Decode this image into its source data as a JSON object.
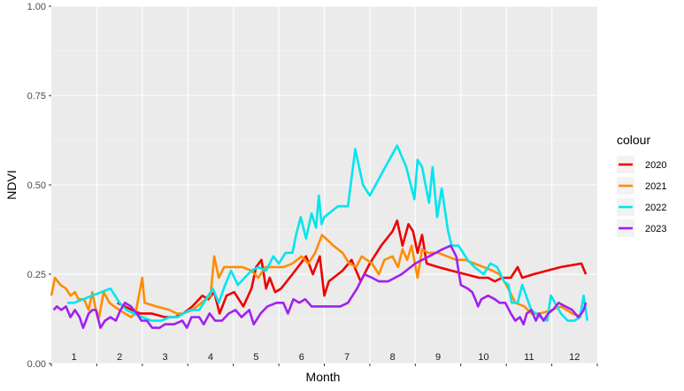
{
  "chart_data": {
    "type": "line",
    "xlabel": "Month",
    "ylabel": "NDVI",
    "ylim": [
      0,
      1
    ],
    "xlim": [
      0,
      12
    ],
    "y_ticks": [
      "0.00",
      "0.25",
      "0.50",
      "0.75",
      "1.00"
    ],
    "x_categories": [
      "1",
      "2",
      "3",
      "4",
      "5",
      "6",
      "7",
      "8",
      "9",
      "10",
      "11",
      "12"
    ],
    "grid": true,
    "legend": {
      "title": "colour",
      "position": "right"
    },
    "series": [
      {
        "name": "2020",
        "color": "#ee0000",
        "points": [
          [
            1.45,
            0.17
          ],
          [
            1.62,
            0.16
          ],
          [
            1.78,
            0.15
          ],
          [
            1.95,
            0.14
          ],
          [
            2.2,
            0.14
          ],
          [
            2.5,
            0.13
          ],
          [
            2.72,
            0.13
          ],
          [
            2.9,
            0.14
          ],
          [
            3.1,
            0.16
          ],
          [
            3.32,
            0.19
          ],
          [
            3.45,
            0.18
          ],
          [
            3.58,
            0.2
          ],
          [
            3.7,
            0.14
          ],
          [
            3.85,
            0.19
          ],
          [
            4.02,
            0.2
          ],
          [
            4.22,
            0.16
          ],
          [
            4.4,
            0.21
          ],
          [
            4.5,
            0.27
          ],
          [
            4.62,
            0.29
          ],
          [
            4.72,
            0.21
          ],
          [
            4.8,
            0.24
          ],
          [
            4.92,
            0.2
          ],
          [
            5.05,
            0.21
          ],
          [
            5.3,
            0.25
          ],
          [
            5.6,
            0.3
          ],
          [
            5.75,
            0.25
          ],
          [
            5.9,
            0.3
          ],
          [
            6.0,
            0.19
          ],
          [
            6.1,
            0.23
          ],
          [
            6.4,
            0.26
          ],
          [
            6.6,
            0.29
          ],
          [
            6.8,
            0.23
          ],
          [
            7.0,
            0.28
          ],
          [
            7.25,
            0.33
          ],
          [
            7.5,
            0.37
          ],
          [
            7.6,
            0.4
          ],
          [
            7.72,
            0.33
          ],
          [
            7.85,
            0.39
          ],
          [
            7.95,
            0.37
          ],
          [
            8.05,
            0.31
          ],
          [
            8.15,
            0.36
          ],
          [
            8.25,
            0.28
          ],
          [
            8.5,
            0.27
          ],
          [
            8.8,
            0.26
          ],
          [
            9.1,
            0.25
          ],
          [
            9.4,
            0.24
          ],
          [
            9.6,
            0.24
          ],
          [
            9.75,
            0.23
          ],
          [
            9.9,
            0.24
          ],
          [
            10.1,
            0.24
          ],
          [
            10.25,
            0.27
          ],
          [
            10.35,
            0.24
          ],
          [
            10.6,
            0.25
          ],
          [
            11.2,
            0.27
          ],
          [
            11.65,
            0.28
          ],
          [
            11.75,
            0.25
          ]
        ]
      },
      {
        "name": "2021",
        "color": "#ff8c00",
        "points": [
          [
            0.0,
            0.19
          ],
          [
            0.08,
            0.24
          ],
          [
            0.2,
            0.22
          ],
          [
            0.32,
            0.21
          ],
          [
            0.42,
            0.19
          ],
          [
            0.52,
            0.2
          ],
          [
            0.6,
            0.18
          ],
          [
            0.72,
            0.18
          ],
          [
            0.82,
            0.15
          ],
          [
            0.9,
            0.2
          ],
          [
            0.98,
            0.15
          ],
          [
            1.05,
            0.13
          ],
          [
            1.15,
            0.2
          ],
          [
            1.28,
            0.17
          ],
          [
            1.38,
            0.16
          ],
          [
            1.5,
            0.15
          ],
          [
            1.62,
            0.14
          ],
          [
            1.75,
            0.13
          ],
          [
            1.85,
            0.14
          ],
          [
            2.0,
            0.24
          ],
          [
            2.05,
            0.17
          ],
          [
            2.3,
            0.16
          ],
          [
            2.6,
            0.15
          ],
          [
            2.75,
            0.14
          ],
          [
            2.9,
            0.14
          ],
          [
            3.1,
            0.15
          ],
          [
            3.3,
            0.17
          ],
          [
            3.5,
            0.19
          ],
          [
            3.58,
            0.3
          ],
          [
            3.68,
            0.24
          ],
          [
            3.8,
            0.27
          ],
          [
            4.0,
            0.27
          ],
          [
            4.2,
            0.27
          ],
          [
            4.4,
            0.26
          ],
          [
            4.55,
            0.24
          ],
          [
            4.7,
            0.27
          ],
          [
            4.9,
            0.27
          ],
          [
            5.1,
            0.27
          ],
          [
            5.3,
            0.28
          ],
          [
            5.5,
            0.3
          ],
          [
            5.65,
            0.28
          ],
          [
            5.8,
            0.31
          ],
          [
            5.95,
            0.36
          ],
          [
            6.2,
            0.33
          ],
          [
            6.4,
            0.31
          ],
          [
            6.55,
            0.28
          ],
          [
            6.7,
            0.27
          ],
          [
            6.82,
            0.3
          ],
          [
            7.05,
            0.28
          ],
          [
            7.2,
            0.25
          ],
          [
            7.32,
            0.29
          ],
          [
            7.5,
            0.3
          ],
          [
            7.62,
            0.27
          ],
          [
            7.72,
            0.32
          ],
          [
            7.82,
            0.29
          ],
          [
            7.92,
            0.33
          ],
          [
            8.05,
            0.24
          ],
          [
            8.15,
            0.32
          ],
          [
            8.28,
            0.31
          ],
          [
            8.5,
            0.31
          ],
          [
            8.7,
            0.3
          ],
          [
            8.9,
            0.29
          ],
          [
            9.1,
            0.29
          ],
          [
            9.3,
            0.28
          ],
          [
            9.5,
            0.27
          ],
          [
            9.7,
            0.26
          ],
          [
            9.85,
            0.25
          ],
          [
            10.0,
            0.22
          ],
          [
            10.2,
            0.17
          ],
          [
            10.4,
            0.16
          ],
          [
            10.55,
            0.14
          ],
          [
            10.75,
            0.14
          ],
          [
            11.0,
            0.15
          ],
          [
            11.2,
            0.16
          ],
          [
            11.45,
            0.14
          ],
          [
            11.65,
            0.13
          ]
        ]
      },
      {
        "name": "2022",
        "color": "#00e5ee",
        "points": [
          [
            0.35,
            0.17
          ],
          [
            0.5,
            0.17
          ],
          [
            0.7,
            0.18
          ],
          [
            0.9,
            0.19
          ],
          [
            1.1,
            0.2
          ],
          [
            1.3,
            0.21
          ],
          [
            1.4,
            0.19
          ],
          [
            1.5,
            0.17
          ],
          [
            1.65,
            0.15
          ],
          [
            1.82,
            0.14
          ],
          [
            2.0,
            0.13
          ],
          [
            2.2,
            0.12
          ],
          [
            2.42,
            0.12
          ],
          [
            2.6,
            0.13
          ],
          [
            2.78,
            0.13
          ],
          [
            2.9,
            0.14
          ],
          [
            3.05,
            0.15
          ],
          [
            3.25,
            0.15
          ],
          [
            3.4,
            0.18
          ],
          [
            3.55,
            0.21
          ],
          [
            3.68,
            0.17
          ],
          [
            3.82,
            0.22
          ],
          [
            3.95,
            0.26
          ],
          [
            4.1,
            0.22
          ],
          [
            4.25,
            0.24
          ],
          [
            4.4,
            0.26
          ],
          [
            4.55,
            0.27
          ],
          [
            4.72,
            0.26
          ],
          [
            4.88,
            0.3
          ],
          [
            5.0,
            0.28
          ],
          [
            5.15,
            0.31
          ],
          [
            5.3,
            0.31
          ],
          [
            5.38,
            0.36
          ],
          [
            5.48,
            0.41
          ],
          [
            5.6,
            0.35
          ],
          [
            5.72,
            0.42
          ],
          [
            5.82,
            0.38
          ],
          [
            5.88,
            0.47
          ],
          [
            5.94,
            0.39
          ],
          [
            6.0,
            0.41
          ],
          [
            6.3,
            0.44
          ],
          [
            6.52,
            0.44
          ],
          [
            6.68,
            0.6
          ],
          [
            6.85,
            0.5
          ],
          [
            7.0,
            0.47
          ],
          [
            7.3,
            0.54
          ],
          [
            7.6,
            0.61
          ],
          [
            7.8,
            0.55
          ],
          [
            7.98,
            0.46
          ],
          [
            8.05,
            0.57
          ],
          [
            8.15,
            0.55
          ],
          [
            8.3,
            0.45
          ],
          [
            8.38,
            0.55
          ],
          [
            8.48,
            0.41
          ],
          [
            8.58,
            0.49
          ],
          [
            8.72,
            0.37
          ],
          [
            8.8,
            0.33
          ],
          [
            8.95,
            0.33
          ],
          [
            9.15,
            0.29
          ],
          [
            9.3,
            0.27
          ],
          [
            9.5,
            0.25
          ],
          [
            9.65,
            0.28
          ],
          [
            9.8,
            0.27
          ],
          [
            9.95,
            0.23
          ],
          [
            10.05,
            0.22
          ],
          [
            10.12,
            0.17
          ],
          [
            10.25,
            0.17
          ],
          [
            10.35,
            0.22
          ],
          [
            10.55,
            0.15
          ],
          [
            10.75,
            0.13
          ],
          [
            10.9,
            0.12
          ],
          [
            10.98,
            0.19
          ],
          [
            11.2,
            0.14
          ],
          [
            11.35,
            0.12
          ],
          [
            11.5,
            0.12
          ],
          [
            11.62,
            0.13
          ],
          [
            11.7,
            0.19
          ],
          [
            11.78,
            0.12
          ]
        ]
      },
      {
        "name": "2023",
        "color": "#a020f0",
        "points": [
          [
            0.05,
            0.15
          ],
          [
            0.12,
            0.16
          ],
          [
            0.22,
            0.15
          ],
          [
            0.32,
            0.16
          ],
          [
            0.42,
            0.13
          ],
          [
            0.52,
            0.15
          ],
          [
            0.62,
            0.13
          ],
          [
            0.7,
            0.1
          ],
          [
            0.82,
            0.14
          ],
          [
            0.9,
            0.15
          ],
          [
            0.98,
            0.15
          ],
          [
            1.08,
            0.1
          ],
          [
            1.18,
            0.12
          ],
          [
            1.3,
            0.13
          ],
          [
            1.42,
            0.12
          ],
          [
            1.52,
            0.15
          ],
          [
            1.62,
            0.17
          ],
          [
            1.75,
            0.16
          ],
          [
            1.88,
            0.14
          ],
          [
            1.98,
            0.12
          ],
          [
            2.1,
            0.12
          ],
          [
            2.22,
            0.1
          ],
          [
            2.38,
            0.1
          ],
          [
            2.5,
            0.11
          ],
          [
            2.7,
            0.11
          ],
          [
            2.88,
            0.12
          ],
          [
            2.98,
            0.1
          ],
          [
            3.08,
            0.13
          ],
          [
            3.25,
            0.13
          ],
          [
            3.35,
            0.11
          ],
          [
            3.48,
            0.14
          ],
          [
            3.6,
            0.12
          ],
          [
            3.75,
            0.12
          ],
          [
            3.9,
            0.14
          ],
          [
            4.05,
            0.15
          ],
          [
            4.18,
            0.13
          ],
          [
            4.35,
            0.15
          ],
          [
            4.45,
            0.11
          ],
          [
            4.6,
            0.14
          ],
          [
            4.75,
            0.16
          ],
          [
            4.95,
            0.17
          ],
          [
            5.1,
            0.17
          ],
          [
            5.2,
            0.14
          ],
          [
            5.32,
            0.18
          ],
          [
            5.45,
            0.17
          ],
          [
            5.58,
            0.18
          ],
          [
            5.72,
            0.16
          ],
          [
            5.85,
            0.16
          ],
          [
            6.1,
            0.16
          ],
          [
            6.35,
            0.16
          ],
          [
            6.52,
            0.17
          ],
          [
            6.72,
            0.21
          ],
          [
            6.88,
            0.25
          ],
          [
            7.05,
            0.24
          ],
          [
            7.2,
            0.23
          ],
          [
            7.4,
            0.23
          ],
          [
            7.7,
            0.25
          ],
          [
            8.0,
            0.28
          ],
          [
            8.3,
            0.3
          ],
          [
            8.6,
            0.32
          ],
          [
            8.78,
            0.33
          ],
          [
            8.9,
            0.3
          ],
          [
            9.0,
            0.22
          ],
          [
            9.15,
            0.21
          ],
          [
            9.25,
            0.2
          ],
          [
            9.32,
            0.18
          ],
          [
            9.38,
            0.16
          ],
          [
            9.45,
            0.18
          ],
          [
            9.6,
            0.19
          ],
          [
            9.75,
            0.18
          ],
          [
            9.85,
            0.17
          ],
          [
            9.98,
            0.17
          ],
          [
            10.1,
            0.14
          ],
          [
            10.2,
            0.12
          ],
          [
            10.3,
            0.13
          ],
          [
            10.38,
            0.11
          ],
          [
            10.45,
            0.14
          ],
          [
            10.55,
            0.15
          ],
          [
            10.65,
            0.12
          ],
          [
            10.72,
            0.14
          ],
          [
            10.82,
            0.12
          ],
          [
            10.92,
            0.14
          ],
          [
            11.02,
            0.15
          ],
          [
            11.15,
            0.17
          ],
          [
            11.3,
            0.16
          ],
          [
            11.45,
            0.15
          ],
          [
            11.58,
            0.13
          ],
          [
            11.65,
            0.14
          ],
          [
            11.7,
            0.15
          ],
          [
            11.75,
            0.17
          ]
        ]
      }
    ]
  }
}
